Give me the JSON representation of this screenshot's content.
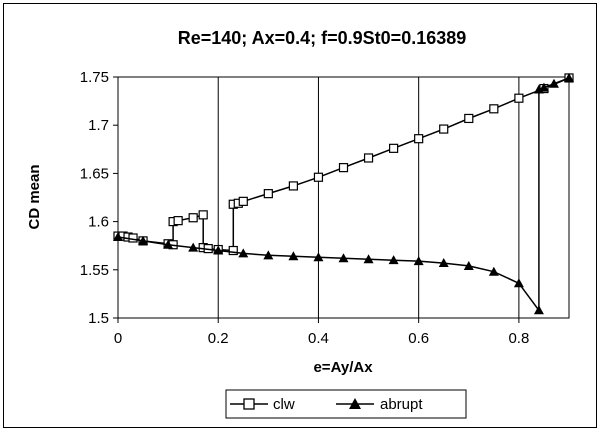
{
  "chart_data": {
    "type": "line",
    "title": "Re=140; Ax=0.4; f=0.9St0=0.16389",
    "xlabel": "e=Ay/Ax",
    "ylabel": "CD mean",
    "xlim": [
      0,
      0.9
    ],
    "ylim": [
      1.5,
      1.75
    ],
    "xticks": [
      0,
      0.2,
      0.4,
      0.6,
      0.8
    ],
    "xtick_labels": [
      "0",
      "0.2",
      "0.4",
      "0.6",
      "0.8"
    ],
    "yticks": [
      1.5,
      1.55,
      1.6,
      1.65,
      1.7,
      1.75
    ],
    "ytick_labels": [
      "1.5",
      "1.55",
      "1.6",
      "1.65",
      "1.7",
      "1.75"
    ],
    "grid": "vertical",
    "legend": "bottom",
    "series": [
      {
        "name": "clw",
        "marker": "open-square",
        "color": "#000000",
        "points": [
          [
            0,
            1.585
          ],
          [
            0.01,
            1.585
          ],
          [
            0.02,
            1.584
          ],
          [
            0.03,
            1.583
          ],
          [
            0.05,
            1.58
          ],
          [
            0.1,
            1.577
          ],
          [
            0.11,
            1.576
          ],
          [
            0.11,
            1.6
          ],
          [
            0.12,
            1.601
          ],
          [
            0.15,
            1.604
          ],
          [
            0.17,
            1.607
          ],
          [
            0.17,
            1.573
          ],
          [
            0.18,
            1.572
          ],
          [
            0.2,
            1.571
          ],
          [
            0.23,
            1.57
          ],
          [
            0.23,
            1.618
          ],
          [
            0.24,
            1.619
          ],
          [
            0.25,
            1.621
          ],
          [
            0.3,
            1.629
          ],
          [
            0.35,
            1.637
          ],
          [
            0.4,
            1.646
          ],
          [
            0.45,
            1.656
          ],
          [
            0.5,
            1.666
          ],
          [
            0.55,
            1.676
          ],
          [
            0.6,
            1.686
          ],
          [
            0.65,
            1.696
          ],
          [
            0.7,
            1.707
          ],
          [
            0.75,
            1.717
          ],
          [
            0.8,
            1.728
          ],
          [
            0.85,
            1.738
          ],
          [
            0.9,
            1.749
          ]
        ]
      },
      {
        "name": "abrupt",
        "marker": "filled-triangle",
        "color": "#000000",
        "points": [
          [
            0,
            1.584
          ],
          [
            0.05,
            1.58
          ],
          [
            0.1,
            1.576
          ],
          [
            0.15,
            1.573
          ],
          [
            0.2,
            1.57
          ],
          [
            0.25,
            1.567
          ],
          [
            0.3,
            1.565
          ],
          [
            0.35,
            1.564
          ],
          [
            0.4,
            1.563
          ],
          [
            0.45,
            1.562
          ],
          [
            0.5,
            1.561
          ],
          [
            0.55,
            1.56
          ],
          [
            0.6,
            1.559
          ],
          [
            0.65,
            1.557
          ],
          [
            0.7,
            1.554
          ],
          [
            0.75,
            1.548
          ],
          [
            0.8,
            1.536
          ],
          [
            0.84,
            1.508
          ],
          [
            0.84,
            1.737
          ],
          [
            0.85,
            1.739
          ],
          [
            0.87,
            1.743
          ],
          [
            0.9,
            1.749
          ]
        ]
      }
    ]
  }
}
